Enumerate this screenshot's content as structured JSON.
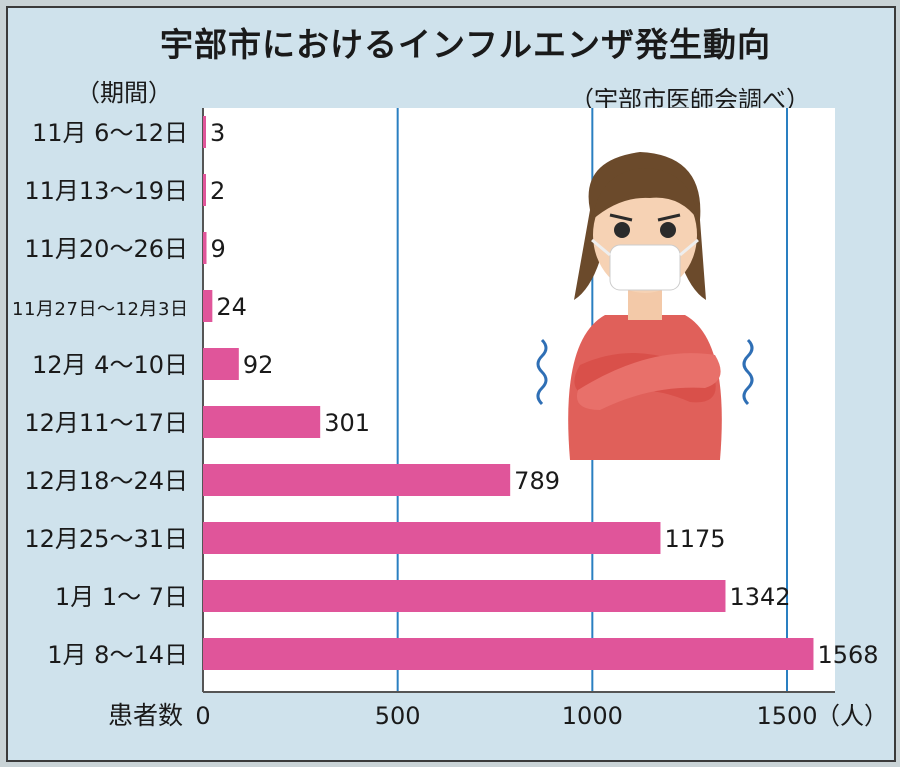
{
  "title": "宇部市におけるインフルエンザ発生動向",
  "source": "（宇部市医師会調べ）",
  "period_header": "（期間）",
  "chart_data": {
    "type": "bar",
    "orientation": "horizontal",
    "categories": [
      "11月 6〜12日",
      "11月13〜19日",
      "11月20〜26日",
      "11月27日〜12月3日",
      "12月 4〜10日",
      "12月11〜17日",
      "12月18〜24日",
      "12月25〜31日",
      "1月 1〜 7日",
      "1月 8〜14日"
    ],
    "values": [
      3,
      2,
      9,
      24,
      92,
      301,
      789,
      1175,
      1342,
      1568
    ],
    "xlabel": "患者数",
    "x_unit": "（人）",
    "xlim": [
      0,
      1600
    ],
    "xticks": [
      0,
      500,
      1000,
      1500
    ],
    "grid": true,
    "bar_color": "#e0559a"
  },
  "illustration": {
    "icon": "masked-girl-shivering-icon"
  }
}
